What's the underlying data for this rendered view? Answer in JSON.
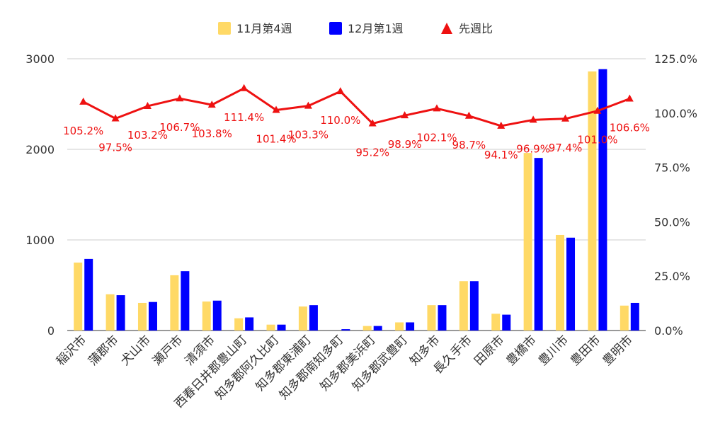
{
  "chart_data": {
    "type": "bar",
    "categories": [
      "稲沢市",
      "蒲郡市",
      "犬山市",
      "瀬戸市",
      "清須市",
      "西春日井郡豊山町",
      "知多郡阿久比町",
      "知多郡東浦町",
      "知多郡南知多町",
      "知多郡美浜町",
      "知多郡武豊町",
      "知多市",
      "長久手市",
      "田原市",
      "豊橋市",
      "豊川市",
      "豊田市",
      "豊明市"
    ],
    "series": [
      {
        "name": "11月第4週",
        "axis": "left",
        "kind": "bar",
        "color": "#ffd966",
        "values": [
          750,
          400,
          305,
          610,
          320,
          135,
          65,
          265,
          0,
          50,
          90,
          280,
          545,
          185,
          1960,
          1055,
          2860,
          275
        ]
      },
      {
        "name": "12月第1週",
        "axis": "left",
        "kind": "bar",
        "color": "#0000ff",
        "values": [
          790,
          390,
          315,
          655,
          330,
          145,
          65,
          280,
          15,
          50,
          90,
          280,
          545,
          175,
          1905,
          1025,
          2885,
          305
        ]
      },
      {
        "name": "先週比",
        "axis": "right",
        "kind": "line",
        "color": "#ee1111",
        "values": [
          105.2,
          97.5,
          103.2,
          106.7,
          103.8,
          111.4,
          101.4,
          103.3,
          110.0,
          95.2,
          98.9,
          102.1,
          98.7,
          94.1,
          96.9,
          97.4,
          101.0,
          106.6
        ],
        "labels": [
          "105.2%",
          "97.5%",
          "103.2%",
          "106.7%",
          "103.8%",
          "111.4%",
          "101.4%",
          "103.3%",
          "110.0%",
          "95.2%",
          "98.9%",
          "102.1%",
          "98.7%",
          "94.1%",
          "96.9%",
          "97.4%",
          "101.0%",
          "106.6%"
        ]
      }
    ],
    "y_left": {
      "min": 0,
      "max": 3000,
      "ticks": [
        0,
        1000,
        2000,
        3000
      ],
      "tick_labels": [
        "0",
        "1000",
        "2000",
        "3000"
      ]
    },
    "y_right": {
      "min": 0,
      "max": 125,
      "ticks": [
        0,
        25,
        50,
        75,
        100,
        125
      ],
      "tick_labels": [
        "0.0%",
        "25.0%",
        "50.0%",
        "75.0%",
        "100.0%",
        "125.0%"
      ]
    },
    "grid": true,
    "legend_position": "top-center"
  }
}
